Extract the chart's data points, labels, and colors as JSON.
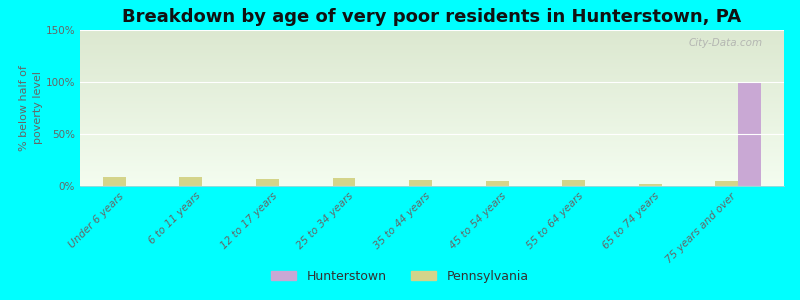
{
  "title": "Breakdown by age of very poor residents in Hunterstown, PA",
  "ylabel": "% below half of\npoverty level",
  "categories": [
    "Under 6 years",
    "6 to 11 years",
    "12 to 17 years",
    "25 to 34 years",
    "35 to 44 years",
    "45 to 54 years",
    "55 to 64 years",
    "65 to 74 years",
    "75 years and over"
  ],
  "hunterstown_values": [
    0,
    0,
    0,
    0,
    0,
    0,
    0,
    0,
    100
  ],
  "pennsylvania_values": [
    9,
    9,
    7,
    8,
    6,
    5,
    6,
    2,
    5
  ],
  "hunterstown_color": "#c9a8d4",
  "pennsylvania_color": "#d4d48a",
  "bar_width": 0.3,
  "ylim": [
    0,
    150
  ],
  "yticks": [
    0,
    50,
    100,
    150
  ],
  "ytick_labels": [
    "0%",
    "50%",
    "100%",
    "150%"
  ],
  "background_color": "#00ffff",
  "plot_bg_top": "#dce8d0",
  "plot_bg_bottom": "#f4fdf0",
  "title_fontsize": 13,
  "axis_label_fontsize": 8,
  "tick_fontsize": 7.5,
  "legend_labels": [
    "Hunterstown",
    "Pennsylvania"
  ],
  "watermark": "City-Data.com"
}
